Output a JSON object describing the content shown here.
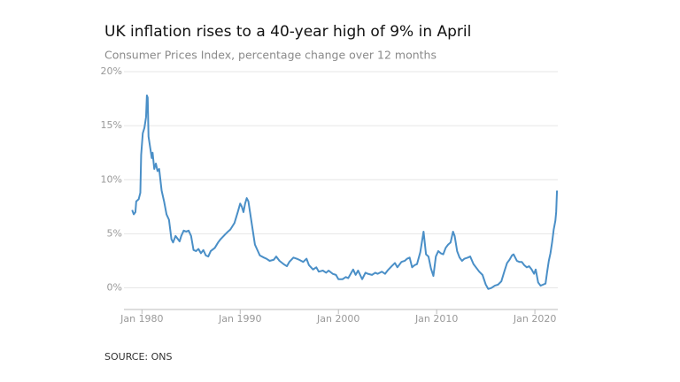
{
  "chart_data": {
    "type": "line",
    "title": "UK inflation rises to a 40-year high of 9% in April",
    "subtitle": "Consumer Prices Index, percentage change over 12 months",
    "source": "SOURCE: ONS",
    "xlim": [
      "1978-03",
      "2022-05"
    ],
    "xticks": [
      {
        "value": "1980-01",
        "label": "Jan 1980"
      },
      {
        "value": "1990-01",
        "label": "Jan 1990"
      },
      {
        "value": "2000-01",
        "label": "Jan 2000"
      },
      {
        "value": "2010-01",
        "label": "Jan 2010"
      },
      {
        "value": "2020-01",
        "label": "Jan 2020"
      }
    ],
    "ylim": [
      -2,
      20
    ],
    "yticks": [
      {
        "value": 0,
        "label": "0%"
      },
      {
        "value": 5,
        "label": "5%"
      },
      {
        "value": 10,
        "label": "10%"
      },
      {
        "value": 15,
        "label": "15%"
      },
      {
        "value": 20,
        "label": "20%"
      }
    ],
    "grid": true,
    "x": [
      "1979-01",
      "1979-03",
      "1979-05",
      "1979-06",
      "1979-09",
      "1979-11",
      "1979-12",
      "1980-02",
      "1980-04",
      "1980-06",
      "1980-07",
      "1980-08",
      "1980-09",
      "1980-11",
      "1981-01",
      "1981-02",
      "1981-04",
      "1981-06",
      "1981-08",
      "1981-10",
      "1982-01",
      "1982-04",
      "1982-07",
      "1982-10",
      "1983-01",
      "1983-03",
      "1983-06",
      "1983-09",
      "1983-11",
      "1984-01",
      "1984-04",
      "1984-07",
      "1984-10",
      "1985-01",
      "1985-04",
      "1985-07",
      "1985-10",
      "1986-01",
      "1986-04",
      "1986-07",
      "1986-10",
      "1987-01",
      "1987-06",
      "1987-10",
      "1988-01",
      "1988-06",
      "1988-10",
      "1989-01",
      "1989-06",
      "1989-10",
      "1990-01",
      "1990-03",
      "1990-05",
      "1990-07",
      "1990-09",
      "1990-11",
      "1991-01",
      "1991-04",
      "1991-07",
      "1991-10",
      "1992-01",
      "1992-06",
      "1992-09",
      "1993-01",
      "1993-06",
      "1993-09",
      "1994-01",
      "1994-06",
      "1994-10",
      "1995-01",
      "1995-06",
      "1995-10",
      "1996-01",
      "1996-06",
      "1996-10",
      "1997-01",
      "1997-06",
      "1997-10",
      "1998-01",
      "1998-06",
      "1998-10",
      "1999-01",
      "1999-06",
      "1999-10",
      "2000-01",
      "2000-06",
      "2000-10",
      "2001-01",
      "2001-04",
      "2001-07",
      "2001-10",
      "2002-01",
      "2002-06",
      "2002-10",
      "2003-01",
      "2003-06",
      "2003-10",
      "2004-01",
      "2004-06",
      "2004-10",
      "2005-01",
      "2005-06",
      "2005-10",
      "2006-01",
      "2006-06",
      "2006-10",
      "2007-01",
      "2007-04",
      "2007-07",
      "2007-10",
      "2008-01",
      "2008-05",
      "2008-09",
      "2008-12",
      "2009-03",
      "2009-06",
      "2009-09",
      "2009-12",
      "2010-03",
      "2010-06",
      "2010-09",
      "2010-12",
      "2011-03",
      "2011-06",
      "2011-09",
      "2011-11",
      "2012-02",
      "2012-05",
      "2012-08",
      "2012-11",
      "2013-03",
      "2013-06",
      "2013-10",
      "2014-01",
      "2014-05",
      "2014-09",
      "2015-01",
      "2015-04",
      "2015-08",
      "2015-12",
      "2016-04",
      "2016-08",
      "2016-12",
      "2017-03",
      "2017-06",
      "2017-09",
      "2017-11",
      "2018-03",
      "2018-06",
      "2018-09",
      "2018-12",
      "2019-03",
      "2019-06",
      "2019-09",
      "2019-12",
      "2020-02",
      "2020-05",
      "2020-08",
      "2020-11",
      "2021-02",
      "2021-04",
      "2021-06",
      "2021-08",
      "2021-10",
      "2021-12",
      "2022-02",
      "2022-03",
      "2022-04"
    ],
    "series": [
      {
        "name": "CPI",
        "color": "#4a8fc7",
        "values": [
          7.2,
          6.8,
          7.0,
          8.0,
          8.2,
          8.8,
          12.3,
          14.3,
          14.8,
          15.8,
          17.8,
          17.6,
          14.0,
          13.0,
          12.0,
          12.5,
          11.0,
          11.5,
          10.8,
          11.0,
          9.0,
          8.0,
          6.8,
          6.3,
          4.5,
          4.2,
          4.8,
          4.5,
          4.3,
          4.8,
          5.3,
          5.2,
          5.3,
          4.8,
          3.5,
          3.4,
          3.6,
          3.2,
          3.5,
          3.0,
          2.9,
          3.4,
          3.7,
          4.2,
          4.5,
          4.9,
          5.2,
          5.4,
          6.0,
          7.0,
          7.8,
          7.5,
          7.0,
          7.8,
          8.3,
          8.0,
          7.0,
          5.5,
          4.0,
          3.5,
          3.0,
          2.8,
          2.7,
          2.5,
          2.6,
          2.9,
          2.5,
          2.2,
          2.0,
          2.4,
          2.8,
          2.7,
          2.6,
          2.4,
          2.7,
          2.1,
          1.7,
          1.9,
          1.5,
          1.6,
          1.4,
          1.6,
          1.3,
          1.2,
          0.8,
          0.8,
          1.0,
          0.9,
          1.3,
          1.7,
          1.2,
          1.6,
          0.8,
          1.4,
          1.3,
          1.2,
          1.4,
          1.3,
          1.5,
          1.3,
          1.6,
          2.0,
          2.3,
          1.9,
          2.4,
          2.5,
          2.7,
          2.8,
          1.9,
          2.1,
          2.2,
          3.3,
          5.2,
          3.1,
          2.9,
          1.8,
          1.1,
          2.9,
          3.4,
          3.2,
          3.1,
          3.7,
          4.0,
          4.2,
          5.2,
          4.8,
          3.4,
          2.8,
          2.5,
          2.7,
          2.8,
          2.9,
          2.2,
          1.9,
          1.5,
          1.2,
          0.3,
          -0.1,
          0.0,
          0.2,
          0.3,
          0.6,
          1.6,
          2.3,
          2.6,
          3.0,
          3.1,
          2.5,
          2.4,
          2.4,
          2.1,
          1.9,
          2.0,
          1.7,
          1.3,
          1.7,
          0.5,
          0.2,
          0.3,
          0.4,
          1.5,
          2.5,
          3.2,
          4.2,
          5.4,
          6.2,
          7.0,
          9.0
        ]
      }
    ]
  }
}
